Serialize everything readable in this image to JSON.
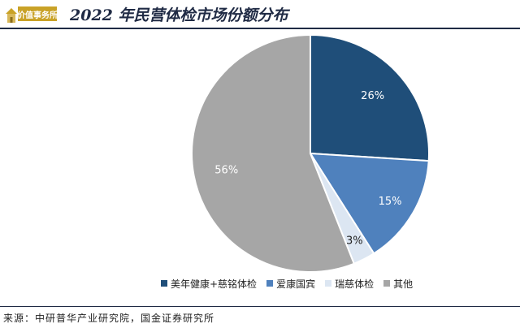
{
  "header": {
    "logo_text": "价值事务所",
    "title": "2022 年民营体检市场份额分布"
  },
  "chart_data": {
    "type": "pie",
    "title": "2022 年民营体检市场份额分布",
    "series": [
      {
        "name": "美年健康+慈铭体检",
        "value": 26,
        "label": "26%",
        "color": "#1f4e79",
        "label_color": "#ffffff"
      },
      {
        "name": "爱康国宾",
        "value": 15,
        "label": "15%",
        "color": "#4f81bd",
        "label_color": "#ffffff"
      },
      {
        "name": "瑞慈体检",
        "value": 3,
        "label": "3%",
        "color": "#dce6f2",
        "label_color": "#222222"
      },
      {
        "name": "其他",
        "value": 56,
        "label": "56%",
        "color": "#a6a6a6",
        "label_color": "#ffffff"
      }
    ],
    "start_angle": "12 o'clock",
    "direction": "clockwise",
    "legend_placement": "bottom"
  },
  "source": "来源：中研普华产业研究院，国金证券研究所"
}
